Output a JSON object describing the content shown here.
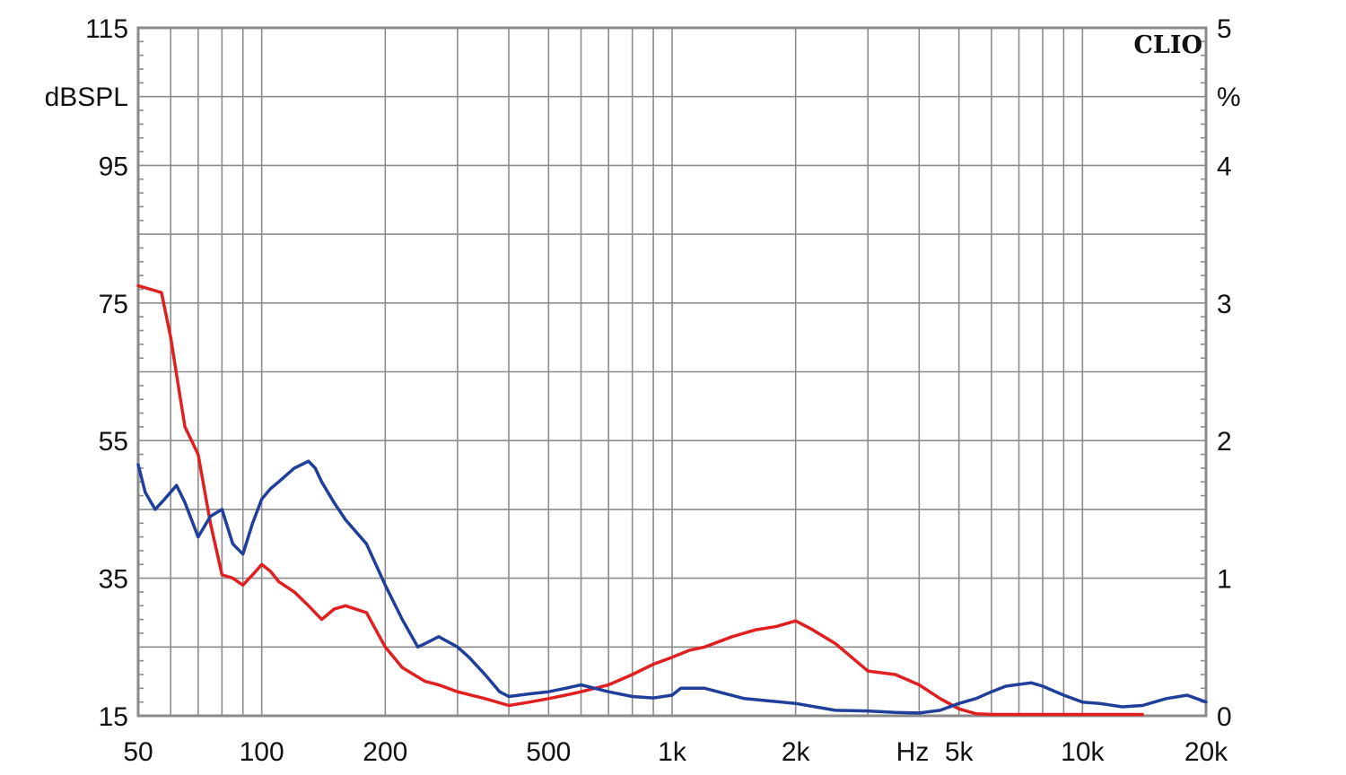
{
  "chart_data": {
    "type": "line",
    "title": "",
    "brand": "CLIO",
    "xlabel": "Hz",
    "ylabel": "dBSPL",
    "ylabel_right": "%",
    "x_scale": "log",
    "xlim": [
      50,
      20000
    ],
    "ylim": [
      15,
      115
    ],
    "ylim_right": [
      0,
      5
    ],
    "x_ticks": [
      {
        "value": 50,
        "label": "50"
      },
      {
        "value": 100,
        "label": "100"
      },
      {
        "value": 200,
        "label": "200"
      },
      {
        "value": 500,
        "label": "500"
      },
      {
        "value": 1000,
        "label": "1k"
      },
      {
        "value": 2000,
        "label": "2k"
      },
      {
        "value": 5000,
        "label": "5k"
      },
      {
        "value": 10000,
        "label": "10k"
      },
      {
        "value": 20000,
        "label": "20k"
      }
    ],
    "y_ticks_left": [
      "15",
      "35",
      "55",
      "75",
      "95",
      "115"
    ],
    "y_ticks_right": [
      "0",
      "1",
      "2",
      "3",
      "4",
      "5"
    ],
    "grid": true,
    "legend": null,
    "series": [
      {
        "name": "red",
        "color": "#e02020",
        "x": [
          50,
          55,
          57,
          60,
          63,
          65,
          70,
          75,
          80,
          85,
          90,
          95,
          100,
          105,
          110,
          120,
          130,
          140,
          150,
          160,
          180,
          200,
          220,
          250,
          270,
          300,
          350,
          400,
          450,
          500,
          550,
          600,
          700,
          800,
          900,
          1000,
          1100,
          1200,
          1400,
          1600,
          1800,
          2000,
          2200,
          2500,
          3000,
          3500,
          4000,
          4500,
          5000,
          5500,
          6000,
          8000,
          10000,
          12000,
          14000
        ],
        "values": [
          77.5,
          76.8,
          76.5,
          70,
          62,
          57,
          53,
          43,
          35.5,
          35,
          34,
          35.5,
          37,
          36,
          34.5,
          33,
          31,
          29,
          30.5,
          31,
          30,
          25,
          22,
          20,
          19.5,
          18.5,
          17.5,
          16.5,
          17,
          17.5,
          18,
          18.5,
          19.5,
          21,
          22.5,
          23.5,
          24.5,
          25,
          26.5,
          27.5,
          28,
          28.8,
          27.5,
          25.5,
          21.5,
          21,
          19.5,
          17.5,
          16,
          15.3,
          15.2,
          15.2,
          15.2,
          15.2,
          15.2
        ]
      },
      {
        "name": "blue",
        "color": "#1f3f9a",
        "x": [
          50,
          52,
          55,
          58,
          62,
          65,
          70,
          75,
          80,
          85,
          90,
          95,
          100,
          105,
          110,
          120,
          130,
          135,
          140,
          150,
          160,
          180,
          200,
          220,
          240,
          250,
          270,
          300,
          320,
          350,
          380,
          400,
          450,
          500,
          550,
          600,
          700,
          800,
          900,
          1000,
          1050,
          1200,
          1500,
          2000,
          2500,
          3000,
          3500,
          4000,
          4500,
          5000,
          5500,
          6000,
          6500,
          7500,
          8000,
          9000,
          10000,
          11000,
          12500,
          14000,
          16000,
          18000,
          20000
        ],
        "values": [
          51.5,
          47.5,
          45,
          46.5,
          48.5,
          46,
          41,
          44,
          45,
          40,
          38.5,
          43,
          46.5,
          48,
          49,
          51,
          52,
          51,
          49,
          46,
          43.5,
          40,
          34,
          29,
          25,
          25.5,
          26.5,
          25,
          23.5,
          21,
          18.5,
          17.8,
          18.2,
          18.5,
          19,
          19.5,
          18.5,
          17.8,
          17.6,
          18,
          19,
          19,
          17.5,
          16.8,
          15.8,
          15.7,
          15.5,
          15.4,
          15.8,
          16.8,
          17.5,
          18.5,
          19.3,
          19.8,
          19.3,
          18,
          17,
          16.8,
          16.3,
          16.5,
          17.5,
          18,
          17
        ]
      }
    ]
  }
}
